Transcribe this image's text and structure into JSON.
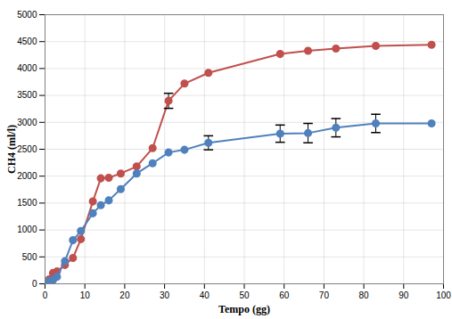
{
  "chart_data": {
    "type": "line",
    "x_label": "Tempo (gg)",
    "y_label": "CH4 (ml/l)",
    "x": [
      1,
      2,
      3,
      5,
      7,
      9,
      12,
      14,
      16,
      19,
      23,
      27,
      31,
      35,
      41,
      59,
      66,
      73,
      83,
      97
    ],
    "series": [
      {
        "color": "#c0504d",
        "marker": "circle",
        "values": [
          80,
          200,
          230,
          350,
          480,
          830,
          1530,
          1960,
          1970,
          2050,
          2180,
          2520,
          3400,
          3720,
          3920,
          4270,
          4330,
          4370,
          4420,
          4440
        ],
        "errors": [
          null,
          null,
          null,
          null,
          null,
          null,
          null,
          null,
          null,
          null,
          null,
          null,
          140,
          null,
          null,
          null,
          null,
          null,
          null,
          null
        ]
      },
      {
        "color": "#4f81bd",
        "marker": "circle",
        "values": [
          50,
          70,
          130,
          420,
          810,
          980,
          1310,
          1460,
          1550,
          1760,
          2050,
          2240,
          2440,
          2490,
          2620,
          2790,
          2800,
          2900,
          2980,
          2980
        ],
        "errors": [
          null,
          null,
          null,
          null,
          null,
          null,
          null,
          null,
          null,
          null,
          null,
          null,
          null,
          null,
          130,
          160,
          180,
          170,
          170,
          null
        ]
      }
    ],
    "xlim": [
      0,
      100
    ],
    "xticks": [
      0,
      10,
      20,
      30,
      40,
      50,
      60,
      70,
      80,
      90,
      100
    ],
    "ylim": [
      0,
      5000
    ],
    "yticks": [
      0,
      500,
      1000,
      1500,
      2000,
      2500,
      3000,
      3500,
      4000,
      4500,
      5000
    ],
    "grid": true
  }
}
